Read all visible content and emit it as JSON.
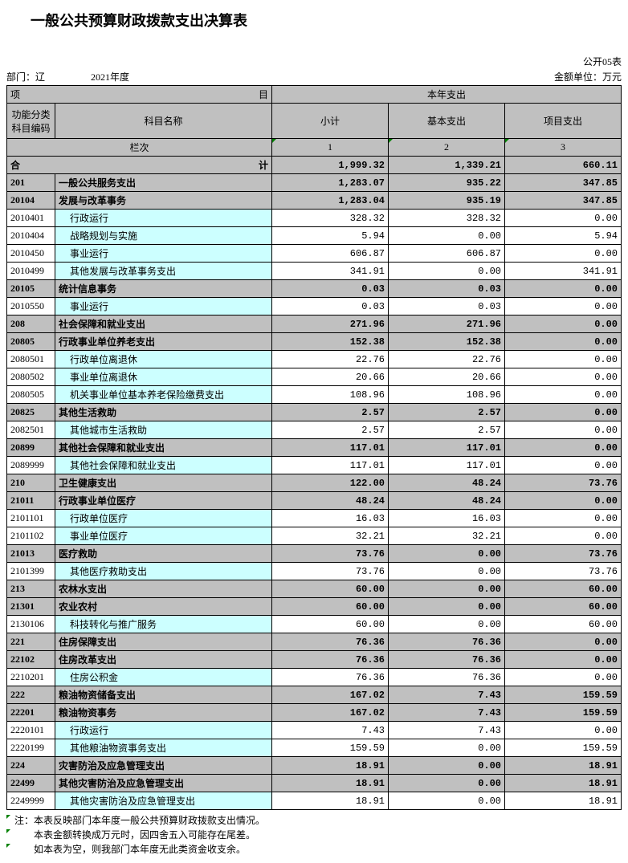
{
  "title": "一般公共预算财政拨款支出决算表",
  "form_no": "公开05表",
  "dept_label": "部门：辽",
  "year": "2021年度",
  "unit": "金额单位：万元",
  "header": {
    "item_group": "项",
    "item_group_suffix": "目",
    "this_year": "本年支出",
    "code": "功能分类\n科目编码",
    "name": "科目名称",
    "subtotal": "小计",
    "basic": "基本支出",
    "project": "项目支出",
    "colnum_label": "栏次",
    "c1": "1",
    "c2": "2",
    "c3": "3"
  },
  "total_row": {
    "label": "合",
    "label_suffix": "计",
    "v1": "1,999.32",
    "v2": "1,339.21",
    "v3": "660.11"
  },
  "rows": [
    {
      "style": "grey",
      "bold": true,
      "code": "201",
      "name": "一般公共服务支出",
      "v1": "1,283.07",
      "v2": "935.22",
      "v3": "347.85"
    },
    {
      "style": "grey",
      "bold": true,
      "code": "20104",
      "name": "发展与改革事务",
      "v1": "1,283.04",
      "v2": "935.19",
      "v3": "347.85"
    },
    {
      "style": "cyan",
      "code": "2010401",
      "name": "行政运行",
      "indent": 1,
      "v1": "328.32",
      "v2": "328.32",
      "v3": "0.00"
    },
    {
      "style": "cyan",
      "code": "2010404",
      "name": "战略规划与实施",
      "indent": 1,
      "v1": "5.94",
      "v2": "0.00",
      "v3": "5.94"
    },
    {
      "style": "cyan",
      "code": "2010450",
      "name": "事业运行",
      "indent": 1,
      "v1": "606.87",
      "v2": "606.87",
      "v3": "0.00"
    },
    {
      "style": "cyan",
      "code": "2010499",
      "name": "其他发展与改革事务支出",
      "indent": 1,
      "v1": "341.91",
      "v2": "0.00",
      "v3": "341.91"
    },
    {
      "style": "grey",
      "bold": true,
      "code": "20105",
      "name": "统计信息事务",
      "v1": "0.03",
      "v2": "0.03",
      "v3": "0.00"
    },
    {
      "style": "cyan",
      "code": "2010550",
      "name": "事业运行",
      "indent": 1,
      "v1": "0.03",
      "v2": "0.03",
      "v3": "0.00"
    },
    {
      "style": "grey",
      "bold": true,
      "code": "208",
      "name": "社会保障和就业支出",
      "v1": "271.96",
      "v2": "271.96",
      "v3": "0.00"
    },
    {
      "style": "grey",
      "bold": true,
      "code": "20805",
      "name": "行政事业单位养老支出",
      "v1": "152.38",
      "v2": "152.38",
      "v3": "0.00"
    },
    {
      "style": "cyan",
      "code": "2080501",
      "name": "行政单位离退休",
      "indent": 1,
      "v1": "22.76",
      "v2": "22.76",
      "v3": "0.00"
    },
    {
      "style": "cyan",
      "code": "2080502",
      "name": "事业单位离退休",
      "indent": 1,
      "v1": "20.66",
      "v2": "20.66",
      "v3": "0.00"
    },
    {
      "style": "cyan",
      "code": "2080505",
      "name": "机关事业单位基本养老保险缴费支出",
      "indent": 1,
      "v1": "108.96",
      "v2": "108.96",
      "v3": "0.00"
    },
    {
      "style": "grey",
      "bold": true,
      "code": "20825",
      "name": "其他生活救助",
      "v1": "2.57",
      "v2": "2.57",
      "v3": "0.00"
    },
    {
      "style": "cyan",
      "code": "2082501",
      "name": "其他城市生活救助",
      "indent": 1,
      "v1": "2.57",
      "v2": "2.57",
      "v3": "0.00"
    },
    {
      "style": "grey",
      "bold": true,
      "code": "20899",
      "name": "其他社会保障和就业支出",
      "v1": "117.01",
      "v2": "117.01",
      "v3": "0.00"
    },
    {
      "style": "cyan",
      "code": "2089999",
      "name": "其他社会保障和就业支出",
      "indent": 1,
      "v1": "117.01",
      "v2": "117.01",
      "v3": "0.00"
    },
    {
      "style": "grey",
      "bold": true,
      "code": "210",
      "name": "卫生健康支出",
      "v1": "122.00",
      "v2": "48.24",
      "v3": "73.76"
    },
    {
      "style": "grey",
      "bold": true,
      "code": "21011",
      "name": "行政事业单位医疗",
      "v1": "48.24",
      "v2": "48.24",
      "v3": "0.00"
    },
    {
      "style": "cyan",
      "code": "2101101",
      "name": "行政单位医疗",
      "indent": 1,
      "v1": "16.03",
      "v2": "16.03",
      "v3": "0.00"
    },
    {
      "style": "cyan",
      "code": "2101102",
      "name": "事业单位医疗",
      "indent": 1,
      "v1": "32.21",
      "v2": "32.21",
      "v3": "0.00"
    },
    {
      "style": "grey",
      "bold": true,
      "code": "21013",
      "name": "医疗救助",
      "v1": "73.76",
      "v2": "0.00",
      "v3": "73.76"
    },
    {
      "style": "cyan",
      "code": "2101399",
      "name": "其他医疗救助支出",
      "indent": 1,
      "v1": "73.76",
      "v2": "0.00",
      "v3": "73.76"
    },
    {
      "style": "grey",
      "bold": true,
      "code": "213",
      "name": "农林水支出",
      "v1": "60.00",
      "v2": "0.00",
      "v3": "60.00"
    },
    {
      "style": "grey",
      "bold": true,
      "code": "21301",
      "name": "农业农村",
      "v1": "60.00",
      "v2": "0.00",
      "v3": "60.00"
    },
    {
      "style": "cyan",
      "code": "2130106",
      "name": "科技转化与推广服务",
      "indent": 1,
      "v1": "60.00",
      "v2": "0.00",
      "v3": "60.00"
    },
    {
      "style": "grey",
      "bold": true,
      "code": "221",
      "name": "住房保障支出",
      "v1": "76.36",
      "v2": "76.36",
      "v3": "0.00"
    },
    {
      "style": "grey",
      "bold": true,
      "code": "22102",
      "name": "住房改革支出",
      "v1": "76.36",
      "v2": "76.36",
      "v3": "0.00"
    },
    {
      "style": "cyan",
      "code": "2210201",
      "name": "住房公积金",
      "indent": 1,
      "v1": "76.36",
      "v2": "76.36",
      "v3": "0.00"
    },
    {
      "style": "grey",
      "bold": true,
      "code": "222",
      "name": "粮油物资储备支出",
      "v1": "167.02",
      "v2": "7.43",
      "v3": "159.59"
    },
    {
      "style": "grey",
      "bold": true,
      "code": "22201",
      "name": "粮油物资事务",
      "v1": "167.02",
      "v2": "7.43",
      "v3": "159.59"
    },
    {
      "style": "cyan",
      "code": "2220101",
      "name": "行政运行",
      "indent": 1,
      "v1": "7.43",
      "v2": "7.43",
      "v3": "0.00"
    },
    {
      "style": "cyan",
      "code": "2220199",
      "name": "其他粮油物资事务支出",
      "indent": 1,
      "v1": "159.59",
      "v2": "0.00",
      "v3": "159.59"
    },
    {
      "style": "grey",
      "bold": true,
      "code": "224",
      "name": "灾害防治及应急管理支出",
      "v1": "18.91",
      "v2": "0.00",
      "v3": "18.91"
    },
    {
      "style": "grey",
      "bold": true,
      "code": "22499",
      "name": "其他灾害防治及应急管理支出",
      "v1": "18.91",
      "v2": "0.00",
      "v3": "18.91"
    },
    {
      "style": "cyan",
      "code": "2249999",
      "name": "其他灾害防治及应急管理支出",
      "indent": 1,
      "v1": "18.91",
      "v2": "0.00",
      "v3": "18.91"
    }
  ],
  "notes": [
    "注：本表反映部门本年度一般公共预算财政拨款支出情况。",
    "本表金额转换成万元时，因四舍五入可能存在尾差。",
    "如本表为空，则我部门本年度无此类资金收支余。"
  ]
}
